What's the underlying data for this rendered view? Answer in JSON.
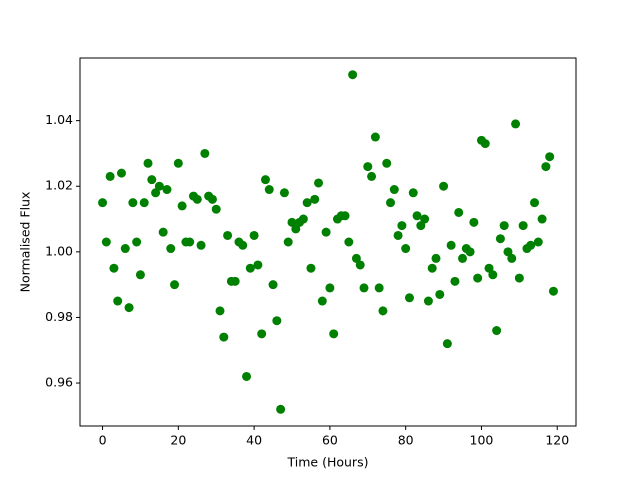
{
  "chart_data": {
    "type": "scatter",
    "xlabel": "Time (Hours)",
    "ylabel": "Normalised Flux",
    "color": "#008000",
    "x": [
      0,
      1,
      2,
      3,
      4,
      5,
      6,
      7,
      8,
      9,
      10,
      11,
      12,
      13,
      14,
      15,
      16,
      17,
      18,
      19,
      20,
      21,
      22,
      23,
      24,
      25,
      26,
      27,
      28,
      29,
      30,
      31,
      32,
      33,
      34,
      35,
      36,
      37,
      38,
      39,
      40,
      41,
      42,
      43,
      44,
      45,
      46,
      47,
      48,
      49,
      50,
      51,
      52,
      53,
      54,
      55,
      56,
      57,
      58,
      59,
      60,
      61,
      62,
      63,
      64,
      65,
      66,
      67,
      68,
      69,
      70,
      71,
      72,
      73,
      74,
      75,
      76,
      77,
      78,
      79,
      80,
      81,
      82,
      83,
      84,
      85,
      86,
      87,
      88,
      89,
      90,
      91,
      92,
      93,
      94,
      95,
      96,
      97,
      98,
      99,
      100,
      101,
      102,
      103,
      104,
      105,
      106,
      107,
      108,
      109,
      110,
      111,
      112,
      113,
      114,
      115,
      116,
      117,
      118,
      119
    ],
    "values": [
      1.015,
      1.003,
      1.023,
      0.995,
      0.985,
      1.024,
      1.001,
      0.983,
      1.015,
      1.003,
      0.993,
      1.015,
      1.027,
      1.022,
      1.018,
      1.02,
      1.006,
      1.019,
      1.001,
      0.99,
      1.027,
      1.014,
      1.003,
      1.003,
      1.017,
      1.016,
      1.002,
      1.03,
      1.017,
      1.016,
      1.013,
      0.982,
      0.974,
      1.005,
      0.991,
      0.991,
      1.003,
      1.002,
      0.962,
      0.995,
      1.005,
      0.996,
      0.975,
      1.022,
      1.019,
      0.99,
      0.979,
      0.952,
      1.018,
      1.003,
      1.009,
      1.007,
      1.009,
      1.01,
      1.015,
      0.995,
      1.016,
      1.021,
      0.985,
      1.006,
      0.989,
      0.975,
      1.01,
      1.011,
      1.011,
      1.003,
      1.054,
      0.998,
      0.996,
      0.989,
      1.026,
      1.023,
      1.035,
      0.989,
      0.982,
      1.027,
      1.015,
      1.019,
      1.005,
      1.008,
      1.001,
      0.986,
      1.018,
      1.011,
      1.008,
      1.01,
      0.985,
      0.995,
      0.998,
      0.987,
      1.02,
      0.972,
      1.002,
      0.991,
      1.012,
      0.998,
      1.001,
      1.0,
      1.009,
      0.992,
      1.034,
      1.033,
      0.995,
      0.993,
      0.976,
      1.004,
      1.008,
      1.0,
      0.998,
      1.039,
      0.992,
      1.008,
      1.001,
      1.002,
      1.015,
      1.003,
      1.01,
      1.026,
      1.029,
      0.988
    ],
    "xlim": [
      -5.95,
      124.95
    ],
    "ylim": [
      0.9469,
      1.0591
    ],
    "xticks": [
      0,
      20,
      40,
      60,
      80,
      100,
      120
    ],
    "yticks": [
      0.96,
      0.98,
      {
        "value": 1,
        "label": "1.00"
      },
      1.02,
      1.04
    ]
  }
}
